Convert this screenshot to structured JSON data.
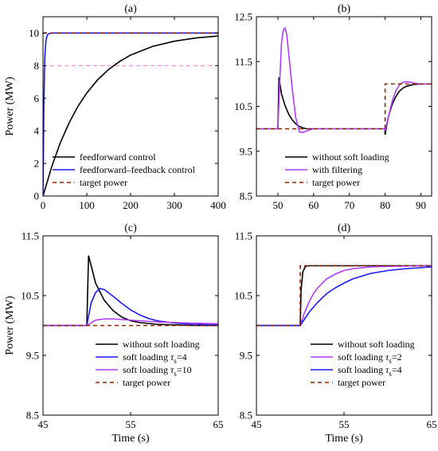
{
  "chart_data": [
    {
      "panel": "(a)",
      "type": "line",
      "xlim": [
        0,
        400
      ],
      "ylim": [
        0,
        11
      ],
      "xticks": [
        "0",
        "100",
        "200",
        "300",
        "400"
      ],
      "yticks": [
        "0",
        "2",
        "4",
        "6",
        "8",
        "10"
      ],
      "ylabel": "Power (MW)",
      "xlabel": "",
      "legend_position": "bottom-left",
      "reference_line": {
        "y": 8,
        "color": "#ff77dd",
        "style": "dashed"
      },
      "series": [
        {
          "name": "feedforward control",
          "color": "#000000",
          "style": "solid",
          "x": [
            0,
            20,
            40,
            60,
            80,
            100,
            125,
            150,
            175,
            200,
            250,
            300,
            350,
            400
          ],
          "y": [
            0,
            1.81,
            3.3,
            4.51,
            5.51,
            6.32,
            7.14,
            7.77,
            8.26,
            8.65,
            9.18,
            9.5,
            9.7,
            9.82
          ]
        },
        {
          "name": "feedforward–feedback control",
          "color": "#1a1aff",
          "style": "solid",
          "x": [
            0,
            2,
            4,
            6,
            8,
            10,
            14,
            20,
            400
          ],
          "y": [
            0,
            5.5,
            8.4,
            9.3,
            9.7,
            9.88,
            9.97,
            10.0,
            10.0
          ]
        },
        {
          "name": "target power",
          "color": "#8b2500",
          "style": "dashed",
          "x": [
            0,
            400
          ],
          "y": [
            10,
            10
          ]
        }
      ]
    },
    {
      "panel": "(b)",
      "type": "line",
      "xlim": [
        44,
        93
      ],
      "ylim": [
        8.5,
        12.5
      ],
      "xticks": [
        "50",
        "60",
        "70",
        "80",
        "90"
      ],
      "yticks": [
        "8.5",
        "9.5",
        "10.5",
        "11.5",
        "12.5"
      ],
      "ylabel": "",
      "xlabel": "",
      "legend_position": "bottom-right",
      "series": [
        {
          "name": "without soft loading",
          "color": "#000000",
          "style": "solid",
          "x": [
            44,
            50,
            50.3,
            51,
            52,
            53,
            54,
            55,
            56,
            57,
            58,
            60,
            70,
            79.9,
            80,
            80.5,
            81,
            82,
            83,
            84,
            85,
            86,
            88,
            90,
            93
          ],
          "y": [
            10,
            10,
            11.15,
            10.78,
            10.52,
            10.33,
            10.2,
            10.11,
            10.05,
            10.02,
            10.0,
            10.0,
            10.0,
            10.0,
            9.87,
            10.1,
            10.3,
            10.55,
            10.72,
            10.84,
            10.91,
            10.95,
            10.99,
            11.0,
            11.0
          ]
        },
        {
          "name": "with filtering",
          "color": "#b03cff",
          "style": "solid",
          "x": [
            44,
            50,
            50.5,
            51,
            51.5,
            52,
            52.5,
            53,
            54,
            55,
            56,
            57,
            58,
            59,
            60,
            62,
            65,
            70,
            79.9,
            80,
            81,
            82,
            83,
            84,
            85,
            86,
            87,
            88,
            90,
            93
          ],
          "y": [
            10,
            10,
            11.0,
            11.9,
            12.2,
            12.25,
            12.1,
            11.7,
            10.9,
            10.25,
            9.93,
            9.92,
            9.95,
            9.98,
            10.0,
            10.0,
            10.0,
            10.0,
            10.0,
            9.95,
            10.3,
            10.62,
            10.85,
            10.98,
            11.04,
            11.05,
            11.04,
            11.02,
            11.0,
            11.0
          ]
        },
        {
          "name": "target power",
          "color": "#8b2500",
          "style": "dashed",
          "x": [
            44,
            80,
            80,
            93
          ],
          "y": [
            10,
            10,
            11,
            11
          ]
        }
      ]
    },
    {
      "panel": "(c)",
      "type": "line",
      "xlim": [
        45,
        65
      ],
      "ylim": [
        8.5,
        11.5
      ],
      "xticks": [
        "45",
        "55",
        "65"
      ],
      "yticks": [
        "8.5",
        "9.5",
        "10.5",
        "11.5"
      ],
      "ylabel": "Power (MW)",
      "xlabel": "Time (s)",
      "legend_position": "bottom-right",
      "series": [
        {
          "name": "without soft loading",
          "color": "#000000",
          "style": "solid",
          "x": [
            45,
            50,
            50.2,
            51,
            52,
            53,
            54,
            55,
            56,
            58,
            60,
            62,
            65
          ],
          "y": [
            10,
            10,
            11.17,
            10.71,
            10.42,
            10.25,
            10.14,
            10.08,
            10.05,
            10.02,
            10.01,
            10.0,
            10.0
          ]
        },
        {
          "name": "soft loading τs=4",
          "color": "#1a1aff",
          "style": "solid",
          "x": [
            45,
            50,
            50.5,
            51,
            51.5,
            52,
            53,
            54,
            55,
            56,
            57,
            58,
            60,
            62,
            65
          ],
          "y": [
            10,
            10,
            10.38,
            10.55,
            10.62,
            10.6,
            10.49,
            10.37,
            10.26,
            10.18,
            10.12,
            10.08,
            10.04,
            10.02,
            10.01
          ]
        },
        {
          "name": "soft loading τs=10",
          "color": "#b03cff",
          "style": "solid",
          "x": [
            45,
            50,
            51,
            52,
            53,
            54,
            55,
            56,
            58,
            60,
            62,
            65
          ],
          "y": [
            10,
            10,
            10.09,
            10.11,
            10.11,
            10.1,
            10.09,
            10.08,
            10.06,
            10.05,
            10.04,
            10.03
          ]
        },
        {
          "name": "target power",
          "color": "#8b2500",
          "style": "dashed",
          "x": [
            45,
            65
          ],
          "y": [
            10,
            10
          ]
        }
      ]
    },
    {
      "panel": "(d)",
      "type": "line",
      "xlim": [
        45,
        65
      ],
      "ylim": [
        8.5,
        11.5
      ],
      "xticks": [
        "45",
        "55",
        "65"
      ],
      "yticks": [
        "8.5",
        "9.5",
        "10.5",
        "11.5"
      ],
      "ylabel": "",
      "xlabel": "Time (s)",
      "legend_position": "bottom-right",
      "series": [
        {
          "name": "without soft loading",
          "color": "#000000",
          "style": "solid",
          "x": [
            45,
            50,
            50.1,
            50.3,
            50.6,
            51,
            52,
            65
          ],
          "y": [
            10,
            10,
            10.6,
            10.9,
            10.99,
            11.0,
            11.0,
            11.0
          ]
        },
        {
          "name": "soft loading τs=2",
          "color": "#b03cff",
          "style": "solid",
          "x": [
            45,
            50,
            50.5,
            51,
            51.5,
            52,
            53,
            54,
            55,
            56,
            58,
            60,
            65
          ],
          "y": [
            10,
            10,
            10.22,
            10.39,
            10.53,
            10.63,
            10.78,
            10.86,
            10.92,
            10.95,
            10.98,
            10.99,
            11.0
          ]
        },
        {
          "name": "soft loading τs=4",
          "color": "#1a1aff",
          "style": "solid",
          "x": [
            45,
            50,
            51,
            52,
            53,
            54,
            55,
            56,
            58,
            60,
            62,
            65
          ],
          "y": [
            10,
            10,
            10.22,
            10.39,
            10.53,
            10.63,
            10.71,
            10.78,
            10.87,
            10.92,
            10.95,
            10.98
          ]
        },
        {
          "name": "target power",
          "color": "#8b2500",
          "style": "dashed",
          "x": [
            45,
            50,
            50,
            65
          ],
          "y": [
            10,
            10,
            11,
            11
          ]
        }
      ]
    }
  ]
}
